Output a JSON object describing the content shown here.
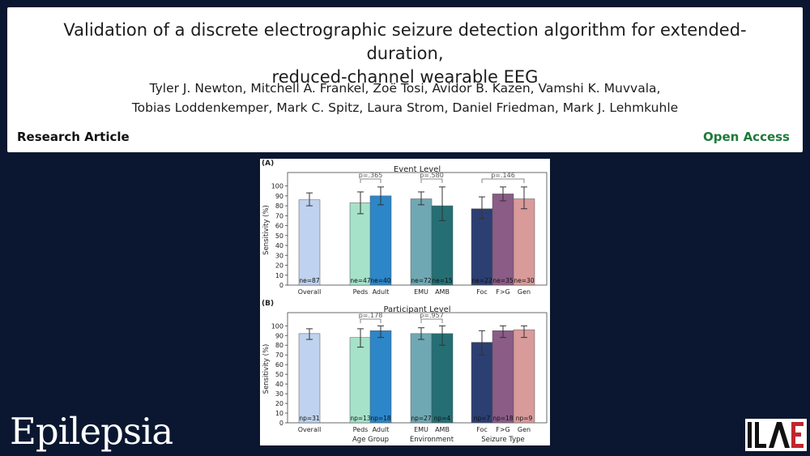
{
  "header": {
    "title_line1": "Validation of a discrete electrographic seizure detection algorithm for extended-duration,",
    "title_line2": "reduced-channel wearable EEG",
    "authors_line1": "Tyler J. Newton, Mitchell A. Frankel, Zoë Tosi, Avidor B. Kazen, Vamshi K. Muvvala,",
    "authors_line2": "Tobias Loddenkemper, Mark C. Spitz, Laura Strom, Daniel Friedman, Mark J. Lehmkuhle",
    "article_type": "Research Article",
    "access": "Open Access"
  },
  "branding": {
    "journal": "Epilepsia",
    "society_logo": "ILAE"
  },
  "colors": {
    "background": "#0b1730",
    "access_green": "#1e7a3a",
    "bars": [
      "#bfd2ef",
      "#a6e2c9",
      "#2c86c8",
      "#6fa8b3",
      "#256f74",
      "#2b3f72",
      "#8a5c86",
      "#d99a9a"
    ]
  },
  "chart_data": [
    {
      "type": "bar",
      "panel": "(A)",
      "title": "Event Level",
      "ylabel": "Sensitivity (%)",
      "xlabel": "",
      "ylim": [
        0,
        100
      ],
      "yticks": [
        0,
        10,
        20,
        30,
        40,
        50,
        60,
        70,
        80,
        90,
        100
      ],
      "categories": [
        "Overall",
        "Peds",
        "Adult",
        "EMU",
        "AMB",
        "Foc",
        "F>G",
        "Gen"
      ],
      "values": [
        86,
        83,
        90,
        87,
        80,
        77,
        92,
        87
      ],
      "error_low": [
        80,
        72,
        81,
        81,
        65,
        67,
        85,
        77
      ],
      "error_high": [
        93,
        94,
        99,
        94,
        99,
        89,
        99,
        99
      ],
      "counts": [
        "ne=87",
        "ne=47",
        "ne=40",
        "ne=72",
        "ne=15",
        "ne=22",
        "ne=35",
        "ne=30"
      ],
      "comparisons": [
        {
          "between": [
            "Peds",
            "Adult"
          ],
          "label": "p=.365"
        },
        {
          "between": [
            "EMU",
            "AMB"
          ],
          "label": "p=.580"
        },
        {
          "between": [
            "Foc",
            "Gen"
          ],
          "label": "p=.146"
        }
      ],
      "grid": false
    },
    {
      "type": "bar",
      "panel": "(B)",
      "title": "Participant Level",
      "ylabel": "Sensitivity (%)",
      "ylim": [
        0,
        100
      ],
      "yticks": [
        0,
        10,
        20,
        30,
        40,
        50,
        60,
        70,
        80,
        90,
        100
      ],
      "categories": [
        "Overall",
        "Peds",
        "Adult",
        "EMU",
        "AMB",
        "Foc",
        "F>G",
        "Gen"
      ],
      "group_labels": [
        "Age Group",
        "Environment",
        "Seizure Type"
      ],
      "values": [
        92,
        88,
        95,
        92,
        92,
        83,
        95,
        96
      ],
      "error_low": [
        86,
        78,
        88,
        86,
        80,
        70,
        88,
        88
      ],
      "error_high": [
        97,
        97,
        100,
        98,
        100,
        95,
        100,
        100
      ],
      "counts": [
        "np=31",
        "np=13",
        "np=18",
        "np=27",
        "np=4",
        "np=7",
        "np=18",
        "np=9"
      ],
      "comparisons": [
        {
          "between": [
            "Peds",
            "Adult"
          ],
          "label": "p=.178"
        },
        {
          "between": [
            "EMU",
            "AMB"
          ],
          "label": "p=.957"
        }
      ],
      "grid": false
    }
  ]
}
